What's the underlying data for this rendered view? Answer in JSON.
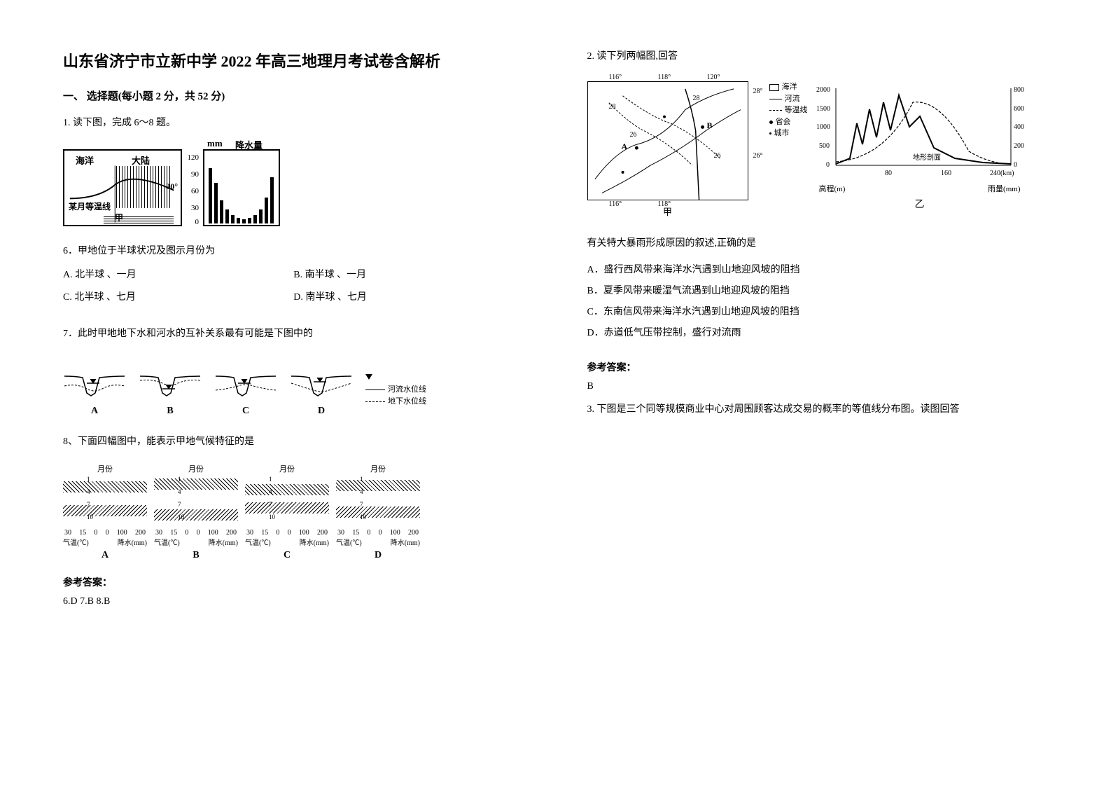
{
  "title": "山东省济宁市立新中学 2022 年高三地理月考试卷含解析",
  "section1": "一、 选择题(每小题 2 分，共 52 分)",
  "q1": {
    "stem": "1. 读下图，完成 6～8 题。",
    "fig1_left": {
      "label_ocean": "海洋",
      "label_land": "大陆",
      "label_isotherm": "某月等温线",
      "label_jia": "甲",
      "angle": "30°"
    },
    "fig1_right": {
      "unit": "mm",
      "title": "降水量",
      "y_ticks": [
        "120",
        "90",
        "60",
        "30",
        "0"
      ],
      "bars": [
        95,
        70,
        40,
        25,
        15,
        10,
        8,
        10,
        15,
        25,
        45,
        80
      ]
    },
    "sub6": "6．甲地位于半球状况及图示月份为",
    "opts6": {
      "A": "A. 北半球 、一月",
      "B": "B. 南半球 、一月",
      "C": "C. 北半球 、七月",
      "D": "D. 南半球 、七月"
    },
    "sub7": "7．此时甲地地下水和河水的互补关系最有可能是下图中的",
    "fig2_labels": [
      "A",
      "B",
      "C",
      "D"
    ],
    "fig2_legend": {
      "river": "河流水位线",
      "ground": "地下水位线"
    },
    "sub8": "8、下面四幅图中，能表示甲地气候特征的是",
    "fig3": {
      "top_label": "月份",
      "y_ticks_left": [
        "1",
        "4",
        "7",
        "10"
      ],
      "x_ticks": [
        "30",
        "15",
        "0",
        "0",
        "100",
        "200"
      ],
      "unit_left": "气温(℃)",
      "unit_right": "降水(mm)",
      "labels": [
        "A",
        "B",
        "C",
        "D"
      ]
    },
    "ansLabel": "参考答案：",
    "ans": "6.D   7.B   8.B"
  },
  "q2": {
    "stem": "2. 读下列两幅图,回答",
    "map": {
      "lons": [
        "116°",
        "118°",
        "120°"
      ],
      "lats": [
        "28°",
        "26°"
      ],
      "iso": [
        "28",
        "26",
        "28",
        "26"
      ],
      "ptA": "A",
      "ptB": "B",
      "cap": "甲"
    },
    "legend": {
      "sea": "海洋",
      "river": "河流",
      "iso": "等温线",
      "cap": "省会",
      "city": "城市"
    },
    "chart": {
      "left_title": "高程(m)",
      "right_title": "雨量(mm)",
      "y_left": [
        "2000",
        "1500",
        "1000",
        "500",
        "0"
      ],
      "y_right": [
        "800",
        "600",
        "400",
        "200",
        "0"
      ],
      "x_ticks": [
        "80",
        "160",
        "240(km)"
      ],
      "x_label": "地形剖面",
      "cap": "乙"
    },
    "qline": "有关特大暴雨形成原因的叙述,正确的是",
    "opts": {
      "A": "A．盛行西风带来海洋水汽遇到山地迎风坡的阻挡",
      "B": "B．夏季风带来暖湿气流遇到山地迎风坡的阻挡",
      "C": "C．东南信风带来海洋水汽遇到山地迎风坡的阻挡",
      "D": "D．赤道低气压带控制，盛行对流雨"
    },
    "ansLabel": "参考答案：",
    "ans": "B"
  },
  "q3": {
    "stem": "3. 下图是三个同等规模商业中心对周围顾客达成交易的概率的等值线分布图。读图回答"
  },
  "colors": {
    "fg": "#000000",
    "bg": "#ffffff"
  }
}
